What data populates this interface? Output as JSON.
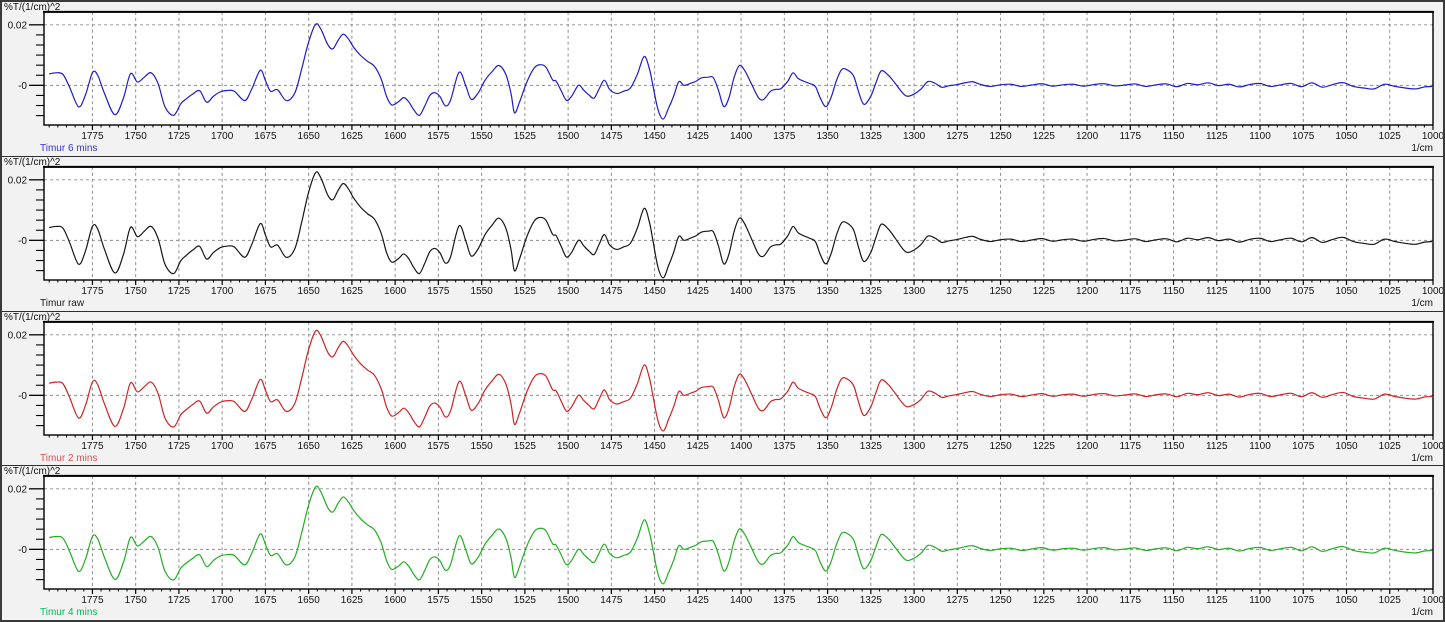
{
  "app": {
    "y_unit_label": "%T/(1/cm)^2",
    "x_unit_label": "1/cm"
  },
  "axes": {
    "y_tick_labels": [
      "0.02",
      "-0"
    ],
    "y_tick_values": [
      0.02,
      0
    ],
    "x_tick_labels": [
      1775,
      1750,
      1725,
      1700,
      1675,
      1650,
      1625,
      1600,
      1575,
      1550,
      1525,
      1500,
      1475,
      1450,
      1425,
      1400,
      1375,
      1350,
      1325,
      1300,
      1275,
      1250,
      1225,
      1200,
      1175,
      1150,
      1125,
      1100,
      1075,
      1050,
      1025,
      1000
    ],
    "x_minor_step": 5,
    "grid_color": "#8f8f8f",
    "frame_color": "#000000"
  },
  "panels": [
    {
      "name": "Timur 6 mins",
      "curve_color": "#1c1cc8",
      "label_color": "#3434cc",
      "amplitude_scale": 0.9
    },
    {
      "name": "Timur raw",
      "curve_color": "#161616",
      "label_color": "#1a1a1a",
      "amplitude_scale": 1.0
    },
    {
      "name": "Timur 2 mins",
      "curve_color": "#cf2323",
      "label_color": "#e05050",
      "amplitude_scale": 0.95
    },
    {
      "name": "Timur 4 mins",
      "curve_color": "#22ae22",
      "label_color": "#00bb55",
      "amplitude_scale": 0.92
    }
  ],
  "chart_data": {
    "type": "line",
    "title": "",
    "xlabel": "1/cm",
    "ylabel": "%T/(1/cm)^2",
    "x_axis": {
      "left_edge": 1803,
      "right_edge": 1000,
      "direction": "decreasing",
      "major_tick_step": 25,
      "minor_tick_step": 5
    },
    "y_axis": {
      "labeled_ticks": [
        0.02,
        0
      ],
      "approx_visible_range": [
        -0.0135,
        0.0245
      ],
      "grid": true
    },
    "legend_position": "below-left-of-each-panel",
    "series": [
      {
        "name": "Timur 6 mins",
        "color": "#1c1cc8",
        "amplitude_scale": 0.9
      },
      {
        "name": "Timur raw",
        "color": "#161616",
        "amplitude_scale": 1.0
      },
      {
        "name": "Timur 2 mins",
        "color": "#cf2323",
        "amplitude_scale": 0.95
      },
      {
        "name": "Timur 4 mins",
        "color": "#22ae22",
        "amplitude_scale": 0.92
      }
    ],
    "base_trace_points": [
      [
        1800,
        0.0042
      ],
      [
        1796,
        0.0046
      ],
      [
        1792,
        0.004
      ],
      [
        1788,
        -0.001
      ],
      [
        1783,
        -0.0079
      ],
      [
        1779,
        -0.0035
      ],
      [
        1775,
        0.0046
      ],
      [
        1772,
        0.0038
      ],
      [
        1768,
        -0.003
      ],
      [
        1762,
        -0.0108
      ],
      [
        1757,
        -0.0045
      ],
      [
        1753,
        0.0043
      ],
      [
        1749,
        0.0012
      ],
      [
        1745,
        0.003
      ],
      [
        1741,
        0.0046
      ],
      [
        1737,
        0.0005
      ],
      [
        1733,
        -0.008
      ],
      [
        1728,
        -0.011
      ],
      [
        1724,
        -0.0068
      ],
      [
        1721,
        -0.0051
      ],
      [
        1717,
        -0.0032
      ],
      [
        1713,
        -0.002
      ],
      [
        1709,
        -0.0062
      ],
      [
        1705,
        -0.004
      ],
      [
        1701,
        -0.0024
      ],
      [
        1697,
        -0.0019
      ],
      [
        1693,
        -0.0022
      ],
      [
        1687,
        -0.0056
      ],
      [
        1683,
        -0.0015
      ],
      [
        1678,
        0.0055
      ],
      [
        1675,
        0.0018
      ],
      [
        1672,
        -0.0022
      ],
      [
        1668,
        -0.0016
      ],
      [
        1663,
        -0.0056
      ],
      [
        1658,
        -0.0028
      ],
      [
        1654,
        0.006
      ],
      [
        1650,
        0.016
      ],
      [
        1646,
        0.0224
      ],
      [
        1643,
        0.0207
      ],
      [
        1639,
        0.015
      ],
      [
        1636,
        0.0134
      ],
      [
        1633,
        0.0165
      ],
      [
        1630,
        0.0188
      ],
      [
        1627,
        0.017
      ],
      [
        1624,
        0.014
      ],
      [
        1620,
        0.011
      ],
      [
        1616,
        0.0088
      ],
      [
        1612,
        0.007
      ],
      [
        1608,
        0.0022
      ],
      [
        1605,
        -0.004
      ],
      [
        1602,
        -0.0072
      ],
      [
        1598,
        -0.006
      ],
      [
        1595,
        -0.0045
      ],
      [
        1592,
        -0.0062
      ],
      [
        1589,
        -0.0092
      ],
      [
        1586,
        -0.011
      ],
      [
        1583,
        -0.0078
      ],
      [
        1580,
        -0.0038
      ],
      [
        1577,
        -0.0027
      ],
      [
        1574,
        -0.0042
      ],
      [
        1571,
        -0.0075
      ],
      [
        1568,
        -0.0055
      ],
      [
        1563,
        0.0048
      ],
      [
        1559,
        -0.0005
      ],
      [
        1556,
        -0.0052
      ],
      [
        1552,
        -0.0028
      ],
      [
        1548,
        0.0019
      ],
      [
        1544,
        0.005
      ],
      [
        1540,
        0.0073
      ],
      [
        1536,
        0.004
      ],
      [
        1533,
        -0.003
      ],
      [
        1531,
        -0.0101
      ],
      [
        1528,
        -0.006
      ],
      [
        1524,
        0.001
      ],
      [
        1520,
        0.006
      ],
      [
        1517,
        0.0075
      ],
      [
        1513,
        0.0068
      ],
      [
        1509,
        0.002
      ],
      [
        1507,
        0.0016
      ],
      [
        1504,
        -0.002
      ],
      [
        1501,
        -0.0055
      ],
      [
        1498,
        -0.004
      ],
      [
        1494,
        0.0
      ],
      [
        1491,
        -0.0018
      ],
      [
        1488,
        -0.0035
      ],
      [
        1485,
        -0.0047
      ],
      [
        1482,
        -0.0012
      ],
      [
        1479,
        0.0019
      ],
      [
        1476,
        -0.0015
      ],
      [
        1472,
        -0.003
      ],
      [
        1468,
        -0.0022
      ],
      [
        1464,
        -0.001
      ],
      [
        1460,
        0.004
      ],
      [
        1456,
        0.0106
      ],
      [
        1453,
        0.006
      ],
      [
        1451,
        0.0
      ],
      [
        1448,
        -0.009
      ],
      [
        1445,
        -0.0124
      ],
      [
        1442,
        -0.0085
      ],
      [
        1439,
        -0.004
      ],
      [
        1436,
        0.0013
      ],
      [
        1433,
        0.0
      ],
      [
        1429,
        0.0008
      ],
      [
        1426,
        0.0015
      ],
      [
        1423,
        0.0027
      ],
      [
        1419,
        0.003
      ],
      [
        1416,
        0.0028
      ],
      [
        1413,
        -0.002
      ],
      [
        1410,
        -0.0078
      ],
      [
        1407,
        -0.0045
      ],
      [
        1404,
        0.003
      ],
      [
        1401,
        0.0073
      ],
      [
        1398,
        0.0055
      ],
      [
        1394,
        0.0005
      ],
      [
        1390,
        -0.0045
      ],
      [
        1387,
        -0.0052
      ],
      [
        1383,
        -0.0022
      ],
      [
        1380,
        -0.0015
      ],
      [
        1377,
        -0.0012
      ],
      [
        1373,
        0.0015
      ],
      [
        1370,
        0.0046
      ],
      [
        1367,
        0.0025
      ],
      [
        1363,
        0.0013
      ],
      [
        1360,
        0.0006
      ],
      [
        1357,
        -0.0005
      ],
      [
        1354,
        -0.005
      ],
      [
        1351,
        -0.0078
      ],
      [
        1348,
        -0.0045
      ],
      [
        1345,
        0.0015
      ],
      [
        1342,
        0.0057
      ],
      [
        1339,
        0.0058
      ],
      [
        1335,
        0.0035
      ],
      [
        1332,
        -0.0025
      ],
      [
        1329,
        -0.007
      ],
      [
        1325,
        -0.004
      ],
      [
        1322,
        0.001
      ],
      [
        1319,
        0.0053
      ],
      [
        1315,
        0.0038
      ],
      [
        1311,
        0.0008
      ],
      [
        1307,
        -0.0025
      ],
      [
        1304,
        -0.004
      ],
      [
        1300,
        -0.0032
      ],
      [
        1296,
        -0.0014
      ],
      [
        1292,
        0.0014
      ],
      [
        1288,
        0.0008
      ],
      [
        1284,
        -0.0007
      ],
      [
        1280,
        -0.0002
      ],
      [
        1275,
        0.0003
      ],
      [
        1270,
        0.001
      ],
      [
        1266,
        0.0013
      ],
      [
        1262,
        0.0004
      ],
      [
        1256,
        -0.0004
      ],
      [
        1250,
        0.0002
      ],
      [
        1244,
        0.0004
      ],
      [
        1238,
        -0.0004
      ],
      [
        1232,
        0.0001
      ],
      [
        1226,
        0.0006
      ],
      [
        1220,
        -0.0003
      ],
      [
        1214,
        0.0002
      ],
      [
        1208,
        0.0004
      ],
      [
        1202,
        -0.0003
      ],
      [
        1196,
        0.0003
      ],
      [
        1190,
        0.0006
      ],
      [
        1184,
        -0.0002
      ],
      [
        1178,
        0.0001
      ],
      [
        1172,
        0.0005
      ],
      [
        1166,
        -0.0004
      ],
      [
        1160,
        0.0002
      ],
      [
        1154,
        0.0005
      ],
      [
        1148,
        -0.0005
      ],
      [
        1142,
        0.0007
      ],
      [
        1136,
        0.0002
      ],
      [
        1130,
        0.0009
      ],
      [
        1124,
        -0.0001
      ],
      [
        1118,
        0.0004
      ],
      [
        1112,
        -0.0006
      ],
      [
        1106,
        0.0003
      ],
      [
        1100,
        0.0007
      ],
      [
        1094,
        -0.0004
      ],
      [
        1088,
        0.0002
      ],
      [
        1082,
        0.0007
      ],
      [
        1076,
        -0.0005
      ],
      [
        1070,
        0.0009
      ],
      [
        1064,
        -0.0007
      ],
      [
        1058,
        0.0003
      ],
      [
        1052,
        0.001
      ],
      [
        1046,
        -0.0004
      ],
      [
        1040,
        -0.001
      ],
      [
        1034,
        -0.0013
      ],
      [
        1028,
        0.0004
      ],
      [
        1022,
        -0.0004
      ],
      [
        1016,
        -0.001
      ],
      [
        1010,
        -0.0013
      ],
      [
        1005,
        -0.0006
      ],
      [
        1000,
        -0.0004
      ]
    ]
  }
}
